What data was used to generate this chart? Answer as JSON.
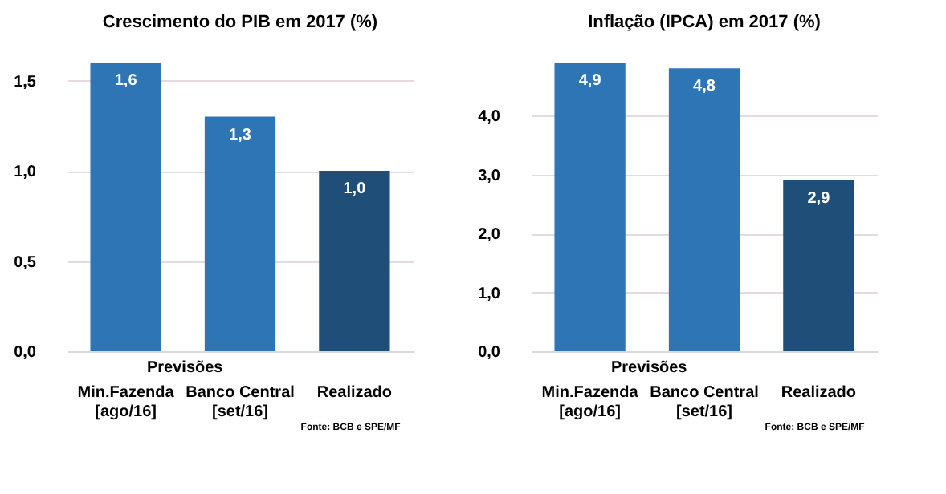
{
  "chart_data": [
    {
      "type": "bar",
      "title": "Crescimento do PIB em 2017 (%)",
      "categories": [
        "Min.Fazenda\n[ago/16]",
        "Banco Central\n[set/16]",
        "Realizado"
      ],
      "values": [
        1.6,
        1.3,
        1.0
      ],
      "colors": [
        "#2e75b6",
        "#2e75b6",
        "#1f4e79"
      ],
      "ylim": [
        0,
        1.6
      ],
      "yticks": [
        {
          "value": 0,
          "label": "0,0"
        },
        {
          "value": 0.5,
          "label": "0,5"
        },
        {
          "value": 1.0,
          "label": "1,0"
        },
        {
          "value": 1.5,
          "label": "1,5"
        }
      ],
      "value_labels": [
        "1,6",
        "1,3",
        "1,0"
      ],
      "grid": "y",
      "annotations": [
        "Previsões",
        "Fonte: BCB e SPE/MF"
      ]
    },
    {
      "type": "bar",
      "title": "Inflação (IPCA) em 2017 (%)",
      "categories": [
        "Min.Fazenda\n[ago/16]",
        "Banco Central\n[set/16]",
        "Realizado"
      ],
      "values": [
        4.9,
        4.8,
        2.9
      ],
      "colors": [
        "#2e75b6",
        "#2e75b6",
        "#1f4e79"
      ],
      "ylim": [
        0,
        4.9
      ],
      "yticks": [
        {
          "value": 0,
          "label": "0,0"
        },
        {
          "value": 1,
          "label": "1,0"
        },
        {
          "value": 2,
          "label": "2,0"
        },
        {
          "value": 3,
          "label": "3,0"
        },
        {
          "value": 4,
          "label": "4,0"
        }
      ],
      "value_labels": [
        "4,9",
        "4,8",
        "2,9"
      ],
      "grid": "y",
      "annotations": [
        "Previsões",
        "Fonte: BCB e SPE/MF"
      ]
    }
  ]
}
